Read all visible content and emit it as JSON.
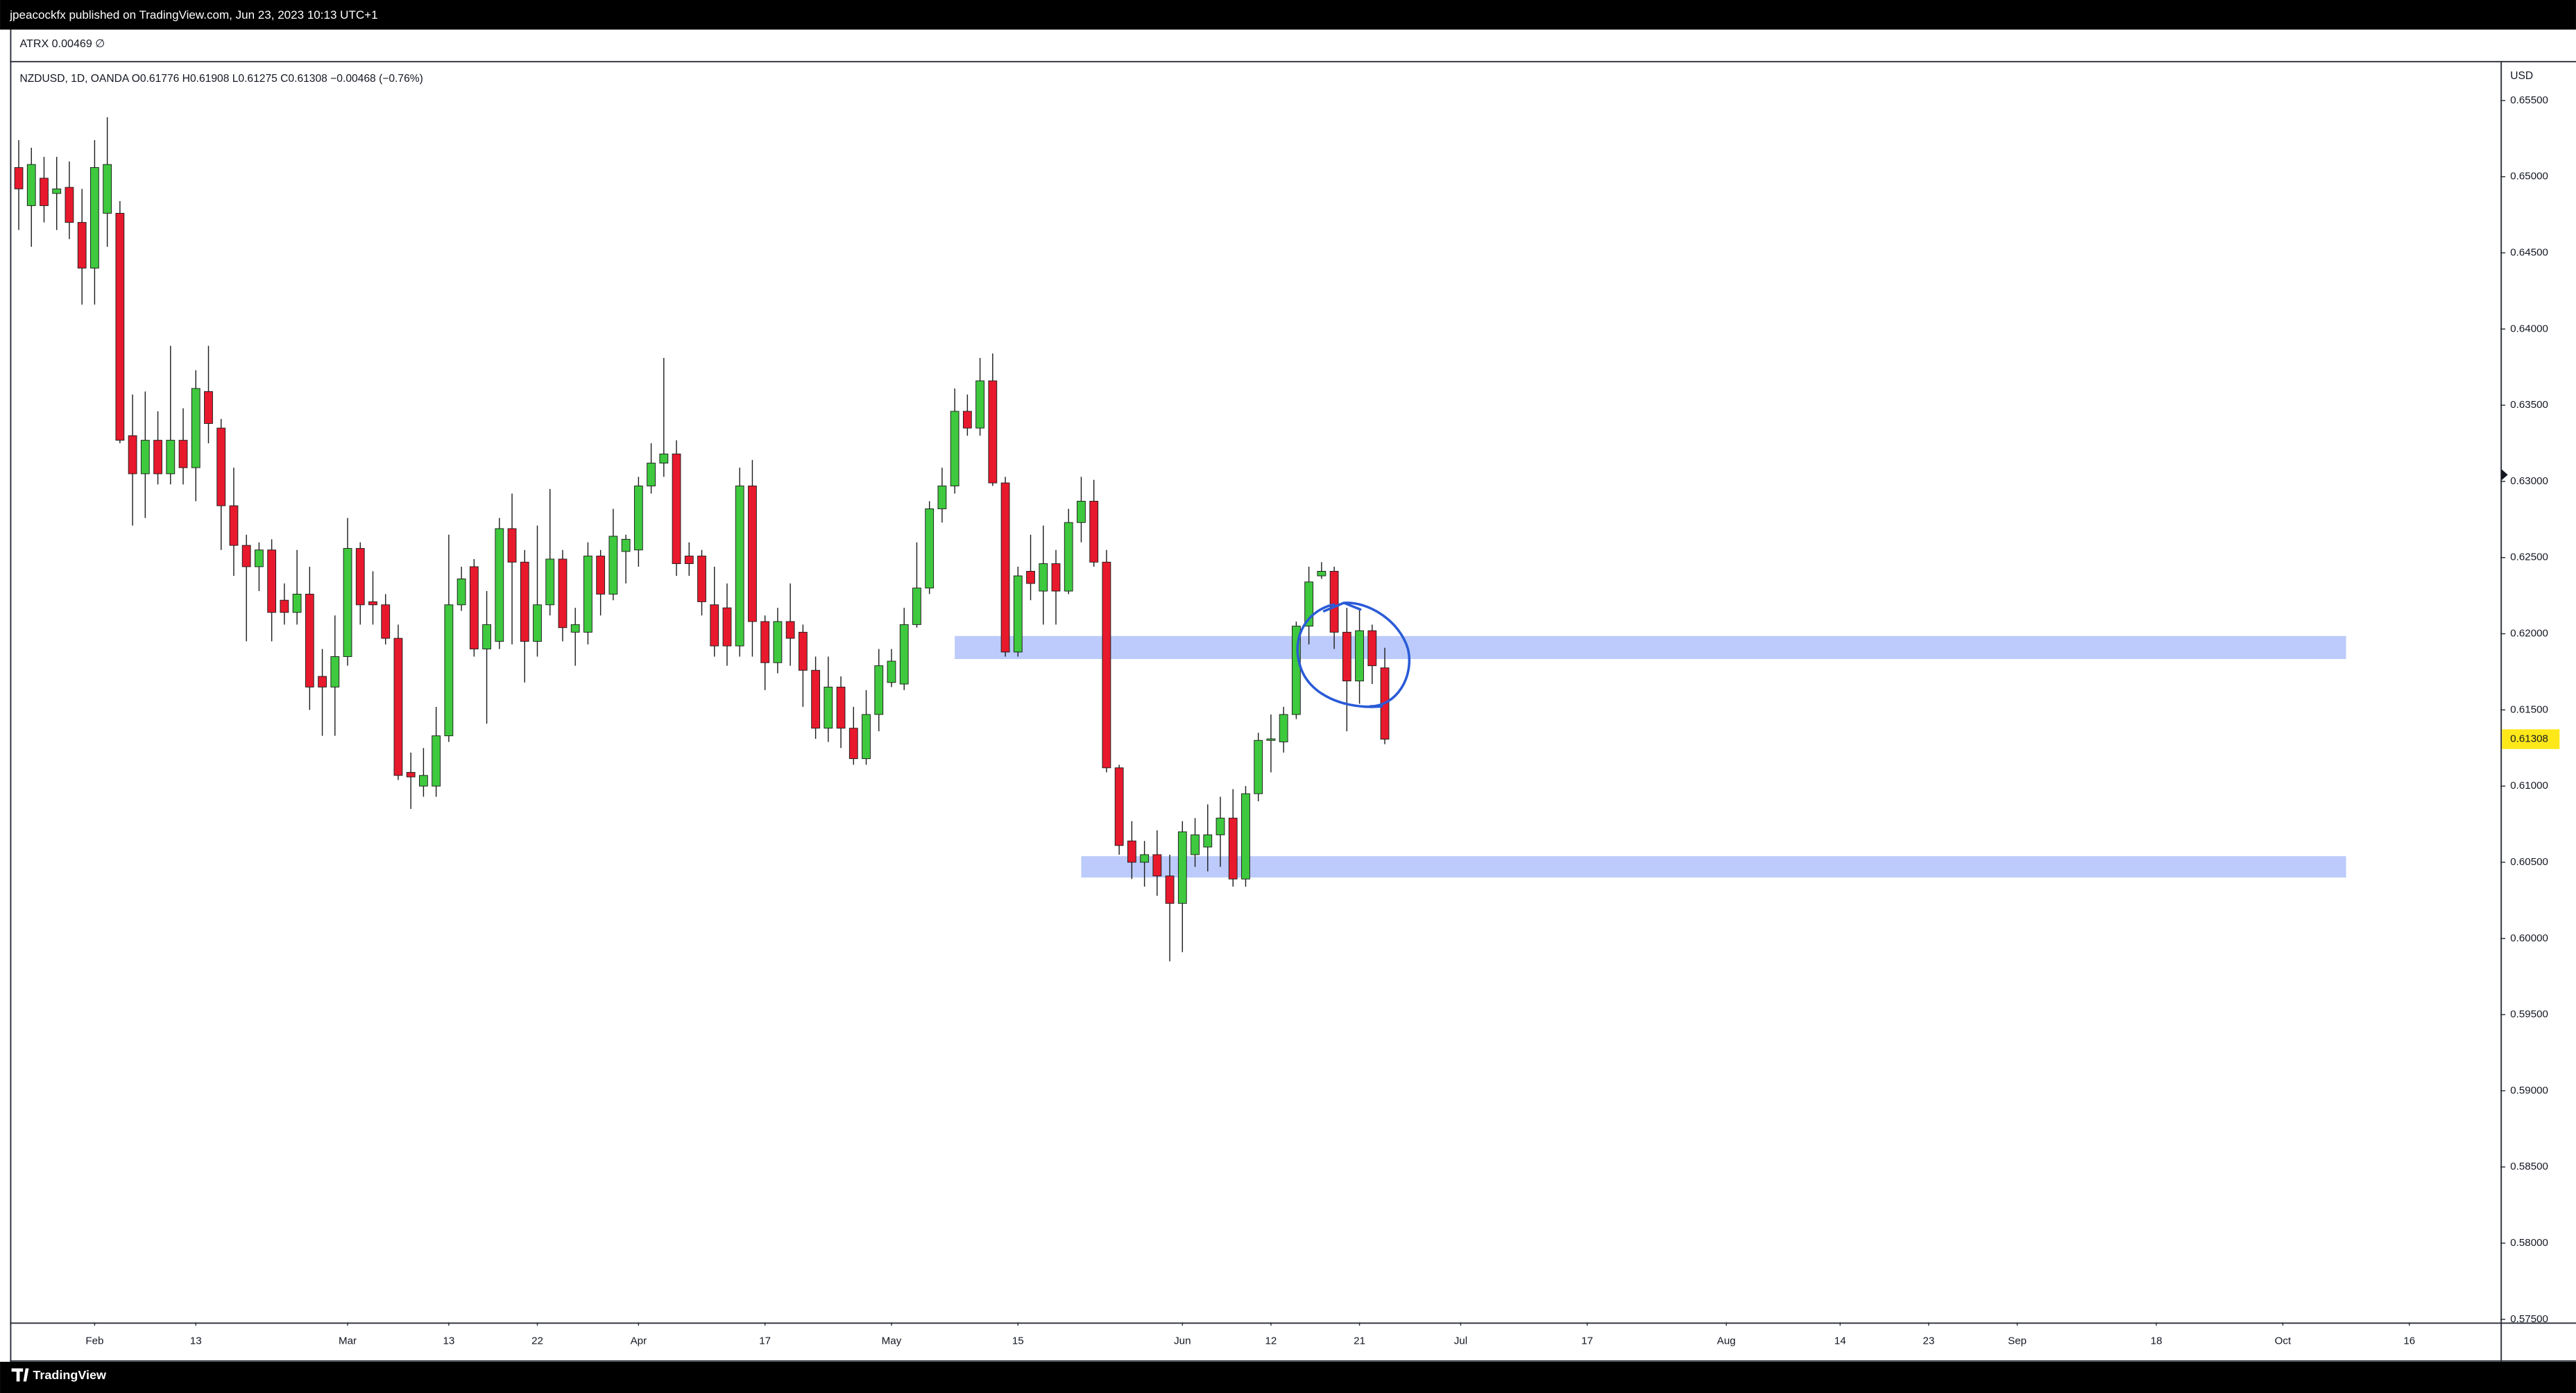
{
  "header": {
    "published": "jpeacockfx published on TradingView.com, Jun 23, 2023 10:13 UTC+1",
    "indicator": "ATRX 0.00469 ∅",
    "footer": "TradingView"
  },
  "chart_data": {
    "type": "candlestick",
    "legend": "NZDUSD, 1D, OANDA  O0.61776  H0.61908  L0.61275  C0.61308  −0.00468 (−0.76%)",
    "y_unit": "USD",
    "x": [
      0,
      1,
      2,
      3,
      4,
      5,
      6,
      7,
      8,
      9,
      10,
      11,
      12,
      13,
      14,
      15,
      16,
      17,
      18,
      19,
      20,
      21,
      22,
      23,
      24,
      25,
      26,
      27,
      28,
      29,
      30,
      31,
      32,
      33,
      34,
      35,
      36,
      37,
      38,
      39,
      40,
      41,
      42,
      43,
      44,
      45,
      46,
      47,
      48,
      49,
      50,
      51,
      52,
      53,
      54,
      55,
      56,
      57,
      58,
      59,
      60,
      61,
      62,
      63,
      64,
      65,
      66,
      67,
      68,
      69,
      70,
      71,
      72,
      73,
      74,
      75,
      76,
      77,
      78,
      79,
      80,
      81,
      82,
      83,
      84,
      85,
      86,
      87,
      88,
      89,
      90,
      91,
      92,
      93,
      94,
      95,
      96,
      97,
      98,
      99,
      100,
      101,
      102,
      103,
      104,
      105,
      106,
      107,
      108
    ],
    "open": [
      0.6506,
      0.6481,
      0.6499,
      0.6489,
      0.6493,
      0.647,
      0.644,
      0.6476,
      0.6476,
      0.633,
      0.6305,
      0.6327,
      0.6305,
      0.6327,
      0.6309,
      0.6359,
      0.6335,
      0.6284,
      0.6258,
      0.6244,
      0.6255,
      0.6222,
      0.6214,
      0.6226,
      0.6172,
      0.6165,
      0.6185,
      0.6256,
      0.6221,
      0.6219,
      0.6197,
      0.6109,
      0.61,
      0.61,
      0.6133,
      0.6219,
      0.6244,
      0.619,
      0.6195,
      0.6269,
      0.6247,
      0.6195,
      0.6219,
      0.6249,
      0.6201,
      0.6201,
      0.6251,
      0.6226,
      0.6254,
      0.6255,
      0.6297,
      0.6312,
      0.6318,
      0.6251,
      0.6251,
      0.6219,
      0.6217,
      0.6192,
      0.6297,
      0.6208,
      0.6181,
      0.6208,
      0.6201,
      0.6176,
      0.6138,
      0.6165,
      0.6138,
      0.6118,
      0.6147,
      0.6168,
      0.6167,
      0.6206,
      0.623,
      0.6282,
      0.6297,
      0.6346,
      0.6335,
      0.6366,
      0.6299,
      0.6188,
      0.6241,
      0.6228,
      0.6246,
      0.6228,
      0.6273,
      0.6287,
      0.6247,
      0.6112,
      0.6064,
      0.605,
      0.6055,
      0.6041,
      0.6023,
      0.6055,
      0.606,
      0.6068,
      0.6079,
      0.6039,
      0.6095,
      0.613,
      0.6129,
      0.6147,
      0.6205,
      0.6238,
      0.6241,
      0.6201,
      0.6169,
      0.6202,
      0.61776
    ],
    "high": [
      0.6524,
      0.6519,
      0.6513,
      0.6513,
      0.651,
      0.6492,
      0.6524,
      0.6539,
      0.6484,
      0.6357,
      0.6359,
      0.6346,
      0.6389,
      0.6348,
      0.6373,
      0.6389,
      0.6341,
      0.6309,
      0.6265,
      0.626,
      0.6262,
      0.6233,
      0.6255,
      0.6244,
      0.619,
      0.6212,
      0.6276,
      0.626,
      0.6241,
      0.6226,
      0.6206,
      0.6122,
      0.6125,
      0.6152,
      0.6265,
      0.6244,
      0.6249,
      0.6228,
      0.6276,
      0.6292,
      0.6255,
      0.6271,
      0.6295,
      0.6255,
      0.6217,
      0.626,
      0.6255,
      0.6282,
      0.6265,
      0.6303,
      0.6325,
      0.6381,
      0.6327,
      0.626,
      0.6255,
      0.6244,
      0.6233,
      0.6309,
      0.6314,
      0.6212,
      0.6217,
      0.6233,
      0.6206,
      0.6185,
      0.6185,
      0.6172,
      0.6152,
      0.6163,
      0.619,
      0.619,
      0.6217,
      0.626,
      0.6287,
      0.6309,
      0.6361,
      0.6357,
      0.6381,
      0.6384,
      0.6303,
      0.6244,
      0.6265,
      0.6271,
      0.6255,
      0.6282,
      0.6303,
      0.6301,
      0.6255,
      0.6114,
      0.6077,
      0.6064,
      0.6071,
      0.6055,
      0.6077,
      0.6079,
      0.6088,
      0.6093,
      0.6098,
      0.61,
      0.6135,
      0.6147,
      0.6152,
      0.6208,
      0.6244,
      0.6247,
      0.6244,
      0.6217,
      0.6217,
      0.6206,
      0.61908
    ],
    "low": [
      0.6465,
      0.6454,
      0.647,
      0.6465,
      0.6459,
      0.6416,
      0.6416,
      0.6454,
      0.6325,
      0.6271,
      0.6276,
      0.6298,
      0.6298,
      0.6298,
      0.6287,
      0.6325,
      0.6255,
      0.6238,
      0.6195,
      0.6228,
      0.6195,
      0.6206,
      0.6206,
      0.615,
      0.6133,
      0.6133,
      0.6179,
      0.6206,
      0.6206,
      0.6193,
      0.6104,
      0.6085,
      0.6093,
      0.6093,
      0.6129,
      0.6215,
      0.6185,
      0.6141,
      0.619,
      0.6193,
      0.6168,
      0.6185,
      0.6212,
      0.6195,
      0.6179,
      0.6193,
      0.6212,
      0.6222,
      0.6233,
      0.6244,
      0.6292,
      0.6303,
      0.6238,
      0.6238,
      0.6212,
      0.6185,
      0.6179,
      0.6185,
      0.6185,
      0.6163,
      0.6174,
      0.6179,
      0.6152,
      0.6131,
      0.6129,
      0.6125,
      0.6114,
      0.6114,
      0.6136,
      0.6165,
      0.6163,
      0.6204,
      0.6226,
      0.6273,
      0.6292,
      0.633,
      0.633,
      0.6297,
      0.6185,
      0.6185,
      0.6222,
      0.6206,
      0.6206,
      0.6226,
      0.626,
      0.6244,
      0.6109,
      0.6055,
      0.6039,
      0.6034,
      0.6028,
      0.5985,
      0.5991,
      0.6047,
      0.6044,
      0.6047,
      0.6034,
      0.6034,
      0.609,
      0.6109,
      0.6122,
      0.6144,
      0.6193,
      0.6236,
      0.619,
      0.6136,
      0.6154,
      0.6167,
      0.61275
    ],
    "close": [
      0.6492,
      0.6508,
      0.6481,
      0.6492,
      0.647,
      0.644,
      0.6506,
      0.6508,
      0.6327,
      0.6305,
      0.6327,
      0.6305,
      0.6327,
      0.6309,
      0.6361,
      0.6338,
      0.6284,
      0.6258,
      0.6244,
      0.6255,
      0.6214,
      0.6214,
      0.6226,
      0.6165,
      0.6165,
      0.6185,
      0.6256,
      0.6219,
      0.6219,
      0.6197,
      0.6107,
      0.6106,
      0.6107,
      0.6133,
      0.6219,
      0.6236,
      0.619,
      0.6206,
      0.6269,
      0.6247,
      0.6195,
      0.6219,
      0.6249,
      0.6204,
      0.6206,
      0.6251,
      0.6226,
      0.6264,
      0.6262,
      0.6297,
      0.6312,
      0.6318,
      0.6246,
      0.6246,
      0.6221,
      0.6192,
      0.6192,
      0.6297,
      0.6208,
      0.6181,
      0.6208,
      0.6197,
      0.6176,
      0.6138,
      0.6165,
      0.6138,
      0.6118,
      0.6147,
      0.6179,
      0.6182,
      0.6206,
      0.623,
      0.6282,
      0.6297,
      0.6346,
      0.6335,
      0.6366,
      0.6299,
      0.6188,
      0.6238,
      0.6233,
      0.6246,
      0.6228,
      0.6273,
      0.6287,
      0.6247,
      0.6112,
      0.6061,
      0.605,
      0.6055,
      0.6041,
      0.6023,
      0.607,
      0.6068,
      0.6068,
      0.6079,
      0.6039,
      0.6095,
      0.613,
      0.6131,
      0.6147,
      0.6205,
      0.6234,
      0.6241,
      0.6201,
      0.6169,
      0.6202,
      0.6179,
      0.61308
    ],
    "up_color": "#3ec93e",
    "down_color": "#e8192c",
    "wick_color": "#1e1e1e",
    "price_label_color": "#ffe81a",
    "zones": [
      {
        "top": 0.61985,
        "bottom": 0.61834,
        "start": 74,
        "end": 184,
        "color": "#bccbfb"
      },
      {
        "top": 0.6054,
        "bottom": 0.604,
        "start": 84,
        "end": 184,
        "color": "#bccbfb"
      }
    ],
    "xlim": [
      -0.57,
      196.2
    ],
    "ylim": [
      0.5748,
      0.6575
    ],
    "grid": false,
    "xticks": [
      {
        "value": 6,
        "label": "Feb"
      },
      {
        "value": 14,
        "label": "13"
      },
      {
        "value": 26,
        "label": "Mar"
      },
      {
        "value": 34,
        "label": "13"
      },
      {
        "value": 41,
        "label": "22"
      },
      {
        "value": 49,
        "label": "Apr"
      },
      {
        "value": 59,
        "label": "17"
      },
      {
        "value": 69,
        "label": "May"
      },
      {
        "value": 79,
        "label": "15"
      },
      {
        "value": 92,
        "label": "Jun"
      },
      {
        "value": 99,
        "label": "12"
      },
      {
        "value": 106,
        "label": "21"
      },
      {
        "value": 114,
        "label": "Jul"
      },
      {
        "value": 124,
        "label": "17"
      },
      {
        "value": 135,
        "label": "Aug"
      },
      {
        "value": 144,
        "label": "14"
      },
      {
        "value": 151,
        "label": "23"
      },
      {
        "value": 158,
        "label": "Sep"
      },
      {
        "value": 169,
        "label": "18"
      },
      {
        "value": 179,
        "label": "Oct"
      },
      {
        "value": 189,
        "label": "16"
      }
    ],
    "yticks": [
      {
        "value": 0.575,
        "label": "0.57500"
      },
      {
        "value": 0.58,
        "label": "0.58000"
      },
      {
        "value": 0.585,
        "label": "0.58500"
      },
      {
        "value": 0.59,
        "label": "0.59000"
      },
      {
        "value": 0.595,
        "label": "0.59500"
      },
      {
        "value": 0.6,
        "label": "0.60000"
      },
      {
        "value": 0.605,
        "label": "0.60500"
      },
      {
        "value": 0.61,
        "label": "0.61000"
      },
      {
        "value": 0.615,
        "label": "0.61500"
      },
      {
        "value": 0.62,
        "label": "0.62000"
      },
      {
        "value": 0.625,
        "label": "0.62500"
      },
      {
        "value": 0.63,
        "label": "0.63000"
      },
      {
        "value": 0.635,
        "label": "0.63500"
      },
      {
        "value": 0.64,
        "label": "0.64000"
      },
      {
        "value": 0.645,
        "label": "0.64500"
      },
      {
        "value": 0.65,
        "label": "0.65000"
      },
      {
        "value": 0.655,
        "label": "0.65500"
      }
    ]
  }
}
